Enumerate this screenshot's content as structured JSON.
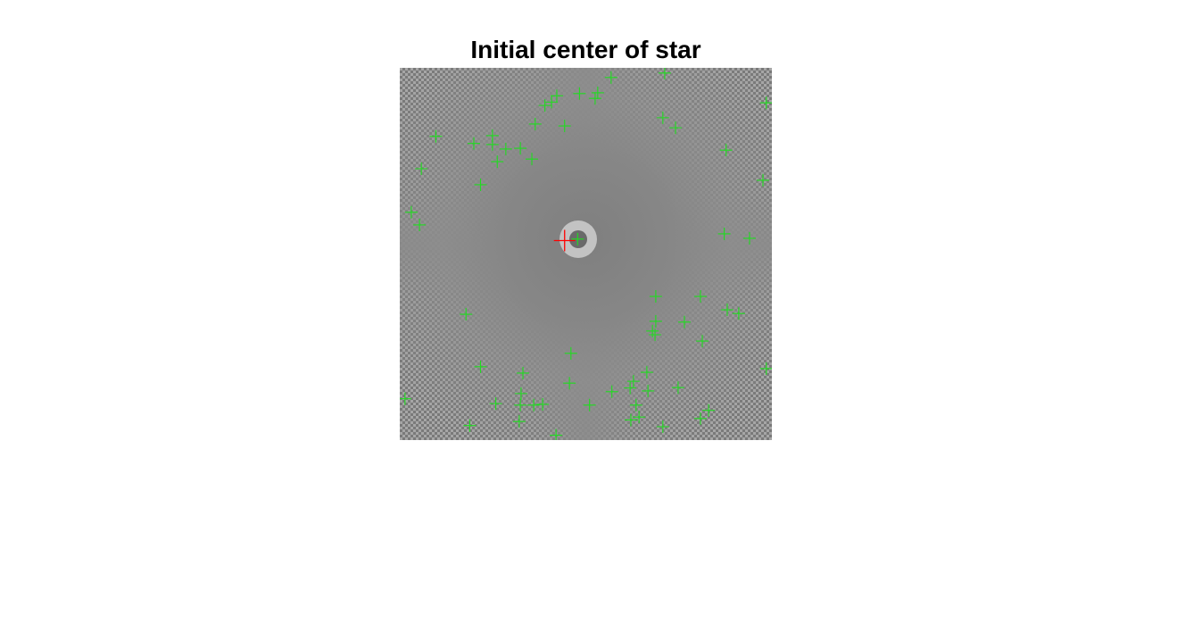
{
  "chart_data": {
    "type": "scatter",
    "title": "Initial center of star",
    "xlabel": "",
    "ylabel": "",
    "grid": false,
    "axes_visible": false,
    "xlim": [
      0,
      100
    ],
    "ylim": [
      0,
      100
    ],
    "y_direction": "down",
    "background": {
      "kind": "grayscale-image",
      "description_colors": [
        "#5f5f5f",
        "#8c8c8c",
        "#bdbdbd"
      ]
    },
    "series": [
      {
        "marker": "+",
        "color": "#1fdc1f",
        "points": [
          [
            56.8,
            2.6
          ],
          [
            71.2,
            1.4
          ],
          [
            53.2,
            6.7
          ],
          [
            52.5,
            8.2
          ],
          [
            48.3,
            6.9
          ],
          [
            42.2,
            7.5
          ],
          [
            40.8,
            9.2
          ],
          [
            39.0,
            10.1
          ],
          [
            98.5,
            9.4
          ],
          [
            70.7,
            13.4
          ],
          [
            74.1,
            16.1
          ],
          [
            44.3,
            15.6
          ],
          [
            36.4,
            15.1
          ],
          [
            9.7,
            18.4
          ],
          [
            24.9,
            18.2
          ],
          [
            19.9,
            20.3
          ],
          [
            24.9,
            20.6
          ],
          [
            28.5,
            21.8
          ],
          [
            32.4,
            21.6
          ],
          [
            35.5,
            24.5
          ],
          [
            26.2,
            25.2
          ],
          [
            87.7,
            22.1
          ],
          [
            5.8,
            27.1
          ],
          [
            21.7,
            31.4
          ],
          [
            97.6,
            30.2
          ],
          [
            3.1,
            38.8
          ],
          [
            5.3,
            42.2
          ],
          [
            87.2,
            44.6
          ],
          [
            94.0,
            45.8
          ],
          [
            47.8,
            46.0
          ],
          [
            68.8,
            61.4
          ],
          [
            80.8,
            61.4
          ],
          [
            88.0,
            65.0
          ],
          [
            91.1,
            66.0
          ],
          [
            17.8,
            66.2
          ],
          [
            68.8,
            68.1
          ],
          [
            76.5,
            68.3
          ],
          [
            67.9,
            70.7
          ],
          [
            68.6,
            71.7
          ],
          [
            81.3,
            73.4
          ],
          [
            46.0,
            76.7
          ],
          [
            21.7,
            80.3
          ],
          [
            33.1,
            82.0
          ],
          [
            66.4,
            81.8
          ],
          [
            98.5,
            80.8
          ],
          [
            62.8,
            84.2
          ],
          [
            61.9,
            86.0
          ],
          [
            45.6,
            84.7
          ],
          [
            57.0,
            87.0
          ],
          [
            66.7,
            86.8
          ],
          [
            74.8,
            85.9
          ],
          [
            32.6,
            87.5
          ],
          [
            1.4,
            88.9
          ],
          [
            25.8,
            90.2
          ],
          [
            32.4,
            90.6
          ],
          [
            36.0,
            90.6
          ],
          [
            38.4,
            90.4
          ],
          [
            51.0,
            90.6
          ],
          [
            63.5,
            90.6
          ],
          [
            83.0,
            92.0
          ],
          [
            32.1,
            95.0
          ],
          [
            62.1,
            94.6
          ],
          [
            64.3,
            93.8
          ],
          [
            80.8,
            94.2
          ],
          [
            18.8,
            96.1
          ],
          [
            70.7,
            96.4
          ],
          [
            42.0,
            98.7
          ]
        ]
      },
      {
        "marker": "+",
        "color": "#ff0000",
        "points": [
          [
            44.3,
            46.4
          ]
        ]
      }
    ]
  }
}
